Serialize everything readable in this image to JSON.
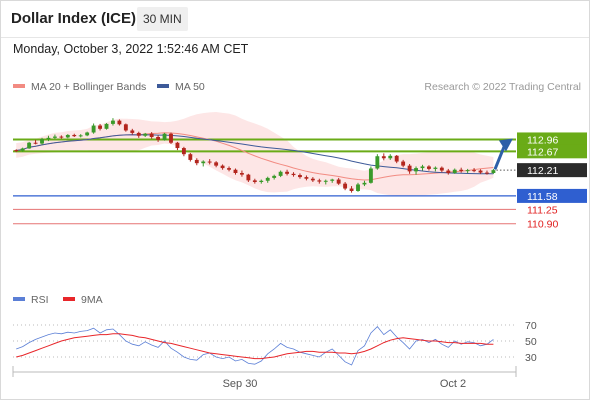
{
  "header": {
    "title": "Dollar Index (ICE)",
    "timeframe": "30 MIN"
  },
  "timestamp": "Monday, October 3, 2022 1:52:46 AM CET",
  "main_legend": [
    {
      "label": "MA 20 + Bollinger Bands",
      "color": "#f28b82"
    },
    {
      "label": "MA 50",
      "color": "#3d5a99"
    }
  ],
  "credit": "Research © 2022 Trading Central",
  "rsi_legend": [
    {
      "label": "RSI",
      "color": "#5b7fd6"
    },
    {
      "label": "9MA",
      "color": "#e8262a"
    }
  ],
  "colors": {
    "up": "#3a9a2a",
    "down": "#b3261e",
    "pivot": "#6aab17",
    "support": "#2f5fd0",
    "resist": "#e57373",
    "band": "#fde2e2",
    "arrow": "#2e5fa8"
  },
  "chart_data": {
    "type": "candlestick",
    "price_axis": {
      "min": 110.6,
      "max": 113.9
    },
    "x_ticks": [
      "Sep 30",
      "Oct 2"
    ],
    "levels": [
      {
        "label": "112.96",
        "value": 112.96,
        "kind": "pivot"
      },
      {
        "label": "112.67",
        "value": 112.67,
        "kind": "pivot"
      },
      {
        "label": "112.21",
        "value": 112.21,
        "kind": "current"
      },
      {
        "label": "111.58",
        "value": 111.58,
        "kind": "support"
      },
      {
        "label": "111.25",
        "value": 111.25,
        "kind": "resistance_line"
      },
      {
        "label": "110.90",
        "value": 110.9,
        "kind": "resistance_line"
      }
    ],
    "candles": [
      [
        112.7,
        112.72,
        112.65,
        112.69
      ],
      [
        112.69,
        112.76,
        112.66,
        112.74
      ],
      [
        112.74,
        112.9,
        112.73,
        112.88
      ],
      [
        112.88,
        112.95,
        112.84,
        112.86
      ],
      [
        112.86,
        113.0,
        112.83,
        112.97
      ],
      [
        112.97,
        113.05,
        112.92,
        113.0
      ],
      [
        113.0,
        113.08,
        112.97,
        113.03
      ],
      [
        113.03,
        113.06,
        112.98,
        113.01
      ],
      [
        113.01,
        113.09,
        112.99,
        113.07
      ],
      [
        113.07,
        113.1,
        113.02,
        113.04
      ],
      [
        113.04,
        113.09,
        113.01,
        113.06
      ],
      [
        113.06,
        113.15,
        113.04,
        113.13
      ],
      [
        113.13,
        113.35,
        113.1,
        113.3
      ],
      [
        113.3,
        113.34,
        113.18,
        113.22
      ],
      [
        113.22,
        113.36,
        113.2,
        113.34
      ],
      [
        113.34,
        113.48,
        113.3,
        113.42
      ],
      [
        113.42,
        113.45,
        113.3,
        113.33
      ],
      [
        113.33,
        113.35,
        113.15,
        113.18
      ],
      [
        113.18,
        113.22,
        113.08,
        113.12
      ],
      [
        113.12,
        113.15,
        113.0,
        113.05
      ],
      [
        113.05,
        113.12,
        113.02,
        113.1
      ],
      [
        113.1,
        113.14,
        112.98,
        113.02
      ],
      [
        113.02,
        113.06,
        112.9,
        112.95
      ],
      [
        112.95,
        113.12,
        112.93,
        113.1
      ],
      [
        113.1,
        113.13,
        112.85,
        112.88
      ],
      [
        112.88,
        112.9,
        112.7,
        112.75
      ],
      [
        112.75,
        112.78,
        112.55,
        112.6
      ],
      [
        112.6,
        112.63,
        112.42,
        112.46
      ],
      [
        112.46,
        112.5,
        112.33,
        112.38
      ],
      [
        112.38,
        112.45,
        112.3,
        112.42
      ],
      [
        112.42,
        112.48,
        112.35,
        112.4
      ],
      [
        112.4,
        112.43,
        112.28,
        112.32
      ],
      [
        112.32,
        112.35,
        112.22,
        112.26
      ],
      [
        112.26,
        112.3,
        112.18,
        112.22
      ],
      [
        112.22,
        112.25,
        112.1,
        112.14
      ],
      [
        112.14,
        112.2,
        112.05,
        112.1
      ],
      [
        112.1,
        112.12,
        111.92,
        111.96
      ],
      [
        111.96,
        112.0,
        111.88,
        111.92
      ],
      [
        111.92,
        111.98,
        111.88,
        111.95
      ],
      [
        111.95,
        112.05,
        111.9,
        112.02
      ],
      [
        112.02,
        112.1,
        111.98,
        112.07
      ],
      [
        112.07,
        112.2,
        112.04,
        112.17
      ],
      [
        112.17,
        112.22,
        112.08,
        112.12
      ],
      [
        112.12,
        112.16,
        112.05,
        112.09
      ],
      [
        112.09,
        112.13,
        112.0,
        112.04
      ],
      [
        112.04,
        112.08,
        111.96,
        112.0
      ],
      [
        112.0,
        112.04,
        111.92,
        111.96
      ],
      [
        111.96,
        112.0,
        111.88,
        111.93
      ],
      [
        111.93,
        111.98,
        111.86,
        111.95
      ],
      [
        111.95,
        112.0,
        111.9,
        111.98
      ],
      [
        111.98,
        112.02,
        111.85,
        111.88
      ],
      [
        111.88,
        111.92,
        111.72,
        111.76
      ],
      [
        111.76,
        111.82,
        111.66,
        111.7
      ],
      [
        111.7,
        111.9,
        111.68,
        111.86
      ],
      [
        111.86,
        111.95,
        111.82,
        111.9
      ],
      [
        111.9,
        112.3,
        111.88,
        112.25
      ],
      [
        112.25,
        112.6,
        112.22,
        112.55
      ],
      [
        112.55,
        112.62,
        112.45,
        112.5
      ],
      [
        112.5,
        112.6,
        112.46,
        112.56
      ],
      [
        112.56,
        112.58,
        112.38,
        112.42
      ],
      [
        112.42,
        112.46,
        112.28,
        112.32
      ],
      [
        112.32,
        112.36,
        112.12,
        112.18
      ],
      [
        112.18,
        112.3,
        112.1,
        112.26
      ],
      [
        112.26,
        112.34,
        112.2,
        112.3
      ],
      [
        112.3,
        112.33,
        112.2,
        112.24
      ],
      [
        112.24,
        112.3,
        112.18,
        112.27
      ],
      [
        112.27,
        112.3,
        112.16,
        112.2
      ],
      [
        112.2,
        112.24,
        112.1,
        112.14
      ],
      [
        112.14,
        112.25,
        112.12,
        112.22
      ],
      [
        112.22,
        112.27,
        112.15,
        112.19
      ],
      [
        112.19,
        112.24,
        112.14,
        112.21
      ],
      [
        112.21,
        112.26,
        112.16,
        112.2
      ],
      [
        112.2,
        112.23,
        112.12,
        112.15
      ],
      [
        112.15,
        112.2,
        112.1,
        112.14
      ],
      [
        112.14,
        112.24,
        112.12,
        112.21
      ]
    ],
    "rsi_axis": {
      "min": 15,
      "max": 85,
      "ticks": [
        "70",
        "50",
        "30"
      ]
    },
    "rsi": [
      40,
      43,
      48,
      52,
      55,
      58,
      60,
      59,
      61,
      60,
      62,
      63,
      66,
      60,
      64,
      65,
      58,
      50,
      46,
      44,
      49,
      45,
      42,
      50,
      41,
      36,
      30,
      27,
      26,
      33,
      35,
      30,
      28,
      30,
      25,
      27,
      22,
      21,
      25,
      34,
      40,
      47,
      42,
      40,
      36,
      34,
      32,
      30,
      36,
      40,
      32,
      24,
      20,
      38,
      44,
      60,
      68,
      58,
      64,
      55,
      48,
      40,
      50,
      52,
      48,
      52,
      46,
      42,
      50,
      46,
      49,
      48,
      44,
      46,
      52
    ],
    "rsi_ma": [
      30,
      32,
      35,
      38,
      41,
      44,
      47,
      50,
      52,
      54,
      55,
      56,
      57,
      58,
      58,
      59,
      59,
      58,
      57,
      55,
      54,
      52,
      50,
      48,
      47,
      45,
      43,
      41,
      39,
      37,
      35,
      34,
      33,
      32,
      31,
      30,
      29,
      28,
      28,
      29,
      30,
      32,
      34,
      35,
      36,
      37,
      37,
      36,
      36,
      36,
      35,
      35,
      34,
      35,
      37,
      40,
      44,
      48,
      51,
      53,
      54,
      53,
      52,
      51,
      50,
      50,
      49,
      48,
      48,
      47,
      47,
      47,
      47,
      46,
      46
    ]
  }
}
